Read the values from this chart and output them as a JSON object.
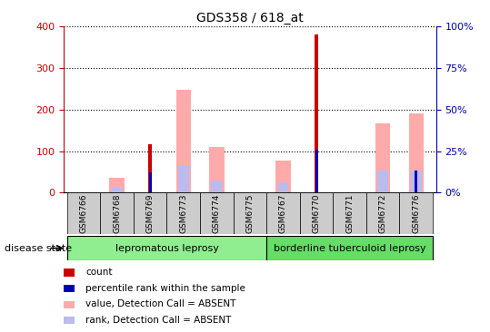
{
  "title": "GDS358 / 618_at",
  "samples": [
    "GSM6766",
    "GSM6768",
    "GSM6769",
    "GSM6773",
    "GSM6774",
    "GSM6775",
    "GSM6767",
    "GSM6770",
    "GSM6771",
    "GSM6772",
    "GSM6776"
  ],
  "count": [
    0,
    0,
    117,
    0,
    0,
    0,
    0,
    382,
    0,
    0,
    0
  ],
  "percentile_rank": [
    0,
    0,
    12,
    0,
    0,
    0,
    0,
    26,
    0,
    0,
    13
  ],
  "value_absent": [
    0,
    35,
    0,
    248,
    110,
    0,
    77,
    0,
    0,
    166,
    191
  ],
  "rank_absent": [
    0,
    12,
    0,
    65,
    30,
    0,
    25,
    0,
    0,
    52,
    52
  ],
  "ylim_left": [
    0,
    400
  ],
  "ylim_right": [
    0,
    100
  ],
  "yticks_left": [
    0,
    100,
    200,
    300,
    400
  ],
  "yticks_right": [
    0,
    25,
    50,
    75,
    100
  ],
  "group1_indices": [
    0,
    1,
    2,
    3,
    4,
    5
  ],
  "group2_indices": [
    6,
    7,
    8,
    9,
    10
  ],
  "group1_label": "lepromatous leprosy",
  "group2_label": "borderline tuberculoid leprosy",
  "disease_state_label": "disease state",
  "legend_labels": [
    "count",
    "percentile rank within the sample",
    "value, Detection Call = ABSENT",
    "rank, Detection Call = ABSENT"
  ],
  "count_color": "#cc0000",
  "percentile_color": "#0000bb",
  "value_absent_color": "#ffaaaa",
  "rank_absent_color": "#bbbbee",
  "group1_color": "#90ee90",
  "group2_color": "#66dd66",
  "left_tick_color": "#cc0000",
  "right_tick_color": "#0000bb",
  "grid_color": "#000000",
  "bg_color": "#ffffff",
  "label_box_color": "#cccccc"
}
